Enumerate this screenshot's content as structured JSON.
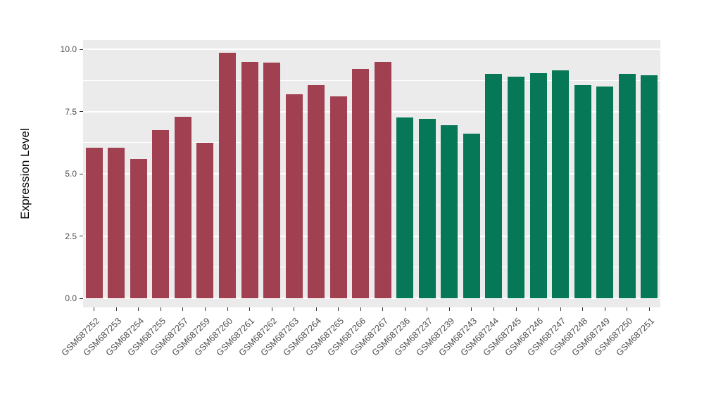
{
  "chart_data": {
    "type": "bar",
    "title": "",
    "xlabel": "",
    "ylabel": "Expression Level",
    "ylim": [
      0,
      10.4
    ],
    "grid": true,
    "legend_position": "none",
    "yticks": [
      "0.0",
      "2.5",
      "5.0",
      "7.5",
      "10.0"
    ],
    "ytick_values": [
      0,
      2.5,
      5,
      7.5,
      10
    ],
    "minor_gridline_values": [
      1.25,
      3.75,
      6.25,
      8.75
    ],
    "categories": [
      "GSM687252",
      "GSM687253",
      "GSM687254",
      "GSM687255",
      "GSM687257",
      "GSM687259",
      "GSM687260",
      "GSM687261",
      "GSM687262",
      "GSM687263",
      "GSM687264",
      "GSM687265",
      "GSM687266",
      "GSM687267",
      "GSM687236",
      "GSM687237",
      "GSM687239",
      "GSM687243",
      "GSM687244",
      "GSM687245",
      "GSM687246",
      "GSM687247",
      "GSM687248",
      "GSM687249",
      "GSM687250",
      "GSM687251"
    ],
    "values": [
      6.05,
      6.05,
      5.6,
      6.75,
      7.3,
      6.25,
      9.85,
      9.5,
      9.45,
      8.2,
      8.55,
      8.1,
      9.2,
      9.5,
      7.25,
      7.2,
      6.95,
      6.6,
      9.0,
      8.9,
      9.05,
      9.15,
      8.55,
      8.5,
      9.0,
      8.95
    ],
    "bar_group": [
      0,
      0,
      0,
      0,
      0,
      0,
      0,
      0,
      0,
      0,
      0,
      0,
      0,
      0,
      1,
      1,
      1,
      1,
      1,
      1,
      1,
      1,
      1,
      1,
      1,
      1
    ],
    "group_colors": [
      "#A04051",
      "#067857"
    ],
    "group_names": [
      "left-group-red",
      "right-group-green"
    ]
  },
  "style": {
    "panel_background": "#EBEBEB",
    "figure_background": "#FFFFFF",
    "gridline_color": "#FFFFFF",
    "axis_text_color": "#4D4D4D",
    "axis_title_color": "#000000",
    "tick_color": "#333333"
  }
}
